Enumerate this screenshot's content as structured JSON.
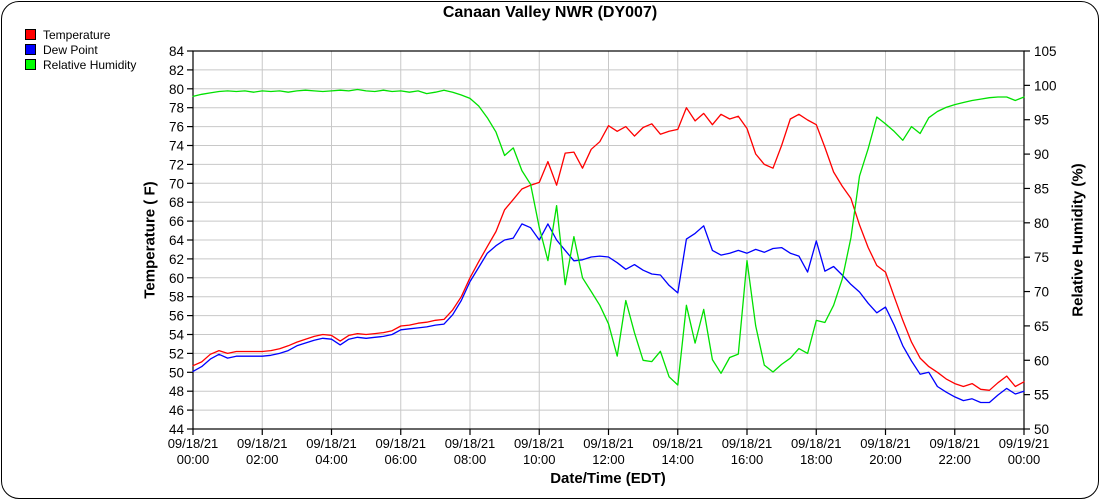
{
  "title": "Canaan Valley NWR (DY007)",
  "legend": {
    "items": [
      {
        "label": "Temperature",
        "color": "#ff0000"
      },
      {
        "label": "Dew Point",
        "color": "#0000ff"
      },
      {
        "label": "Relative Humidity",
        "color": "#00ff00"
      }
    ],
    "position": "top-left"
  },
  "chart_data": {
    "type": "line",
    "title": "Canaan Valley NWR (DY007)",
    "xlabel": "Date/Time (EDT)",
    "ylabel_left": "Temperature ( F)",
    "ylabel_right": "Relative Humidity (%)",
    "grid": "on",
    "legend_position": "top-left",
    "x_unit": "hours since 09/18/21 00:00",
    "x_range": [
      0,
      24
    ],
    "x_step_hours": 0.25,
    "x_tick_step_hours": 2,
    "x_ticks": [
      {
        "date": "09/18/21",
        "time": "00:00"
      },
      {
        "date": "09/18/21",
        "time": "02:00"
      },
      {
        "date": "09/18/21",
        "time": "04:00"
      },
      {
        "date": "09/18/21",
        "time": "06:00"
      },
      {
        "date": "09/18/21",
        "time": "08:00"
      },
      {
        "date": "09/18/21",
        "time": "10:00"
      },
      {
        "date": "09/18/21",
        "time": "12:00"
      },
      {
        "date": "09/18/21",
        "time": "14:00"
      },
      {
        "date": "09/18/21",
        "time": "16:00"
      },
      {
        "date": "09/18/21",
        "time": "18:00"
      },
      {
        "date": "09/18/21",
        "time": "20:00"
      },
      {
        "date": "09/18/21",
        "time": "22:00"
      },
      {
        "date": "09/19/21",
        "time": "00:00"
      }
    ],
    "y_left": {
      "label": "Temperature ( F)",
      "range": [
        44,
        84
      ],
      "tick_step": 2,
      "ticks": [
        44,
        46,
        48,
        50,
        52,
        54,
        56,
        58,
        60,
        62,
        64,
        66,
        68,
        70,
        72,
        74,
        76,
        78,
        80,
        82,
        84
      ]
    },
    "y_right": {
      "label": "Relative Humidity (%)",
      "range": [
        50,
        105
      ],
      "tick_step": 5,
      "ticks": [
        50,
        55,
        60,
        65,
        70,
        75,
        80,
        85,
        90,
        95,
        100,
        105
      ]
    },
    "grid_color": "#c8c8c8",
    "series": [
      {
        "name": "Temperature",
        "axis": "left",
        "color": "#ff0000",
        "values": [
          50.7,
          51.1,
          51.9,
          52.3,
          52.0,
          52.2,
          52.2,
          52.2,
          52.2,
          52.3,
          52.5,
          52.8,
          53.2,
          53.5,
          53.8,
          54.0,
          53.9,
          53.3,
          53.9,
          54.1,
          54.0,
          54.1,
          54.2,
          54.4,
          54.9,
          55.0,
          55.2,
          55.3,
          55.5,
          55.6,
          56.6,
          58.0,
          60.0,
          61.7,
          63.3,
          64.9,
          67.2,
          68.3,
          69.4,
          69.8,
          70.1,
          72.3,
          69.8,
          73.2,
          73.3,
          71.6,
          73.6,
          74.4,
          76.1,
          75.5,
          76.0,
          75.0,
          75.9,
          76.3,
          75.2,
          75.5,
          75.7,
          78.0,
          76.6,
          77.4,
          76.2,
          77.3,
          76.8,
          77.1,
          75.8,
          73.1,
          72.0,
          71.6,
          74.0,
          76.8,
          77.3,
          76.7,
          76.2,
          73.8,
          71.2,
          69.7,
          68.4,
          65.6,
          63.2,
          61.3,
          60.6,
          58.0,
          55.5,
          53.2,
          51.5,
          50.6,
          50.0,
          49.3,
          48.8,
          48.5,
          48.8,
          48.2,
          48.1,
          48.9,
          49.6,
          48.5,
          49.0
        ]
      },
      {
        "name": "Dew Point",
        "axis": "left",
        "color": "#0000ff",
        "values": [
          50.1,
          50.6,
          51.4,
          51.9,
          51.5,
          51.7,
          51.7,
          51.7,
          51.7,
          51.8,
          52.0,
          52.3,
          52.8,
          53.1,
          53.4,
          53.6,
          53.5,
          52.9,
          53.5,
          53.7,
          53.6,
          53.7,
          53.8,
          54.0,
          54.5,
          54.6,
          54.7,
          54.8,
          55.0,
          55.1,
          56.1,
          57.6,
          59.6,
          61.1,
          62.6,
          63.4,
          64.0,
          64.2,
          65.7,
          65.3,
          64.0,
          65.7,
          64.0,
          62.9,
          61.8,
          61.9,
          62.2,
          62.3,
          62.2,
          61.6,
          60.9,
          61.4,
          60.8,
          60.4,
          60.3,
          59.2,
          58.4,
          64.1,
          64.7,
          65.5,
          62.9,
          62.4,
          62.6,
          62.9,
          62.6,
          63.0,
          62.7,
          63.1,
          63.2,
          62.6,
          62.3,
          60.6,
          63.9,
          60.7,
          61.2,
          60.3,
          59.3,
          58.5,
          57.3,
          56.3,
          56.9,
          55.0,
          52.8,
          51.2,
          49.8,
          50.0,
          48.5,
          47.9,
          47.4,
          47.0,
          47.2,
          46.8,
          46.8,
          47.6,
          48.3,
          47.7,
          48.0
        ]
      },
      {
        "name": "Relative Humidity",
        "axis": "right",
        "color": "#00e100",
        "values": [
          98.4,
          98.7,
          98.9,
          99.1,
          99.2,
          99.1,
          99.2,
          99.0,
          99.2,
          99.1,
          99.2,
          99.0,
          99.2,
          99.3,
          99.2,
          99.1,
          99.2,
          99.3,
          99.2,
          99.4,
          99.2,
          99.1,
          99.3,
          99.1,
          99.2,
          99.0,
          99.2,
          98.8,
          99.0,
          99.3,
          99.0,
          98.6,
          98.1,
          97.0,
          95.3,
          93.2,
          89.8,
          90.9,
          87.6,
          85.6,
          79.3,
          74.5,
          82.5,
          71.0,
          78.0,
          72.0,
          70.0,
          68.0,
          65.3,
          60.6,
          68.7,
          64.0,
          60.0,
          59.8,
          61.3,
          57.6,
          56.4,
          68.0,
          62.5,
          67.4,
          60.1,
          58.1,
          60.4,
          60.9,
          74.5,
          65.0,
          59.3,
          58.3,
          59.4,
          60.3,
          61.7,
          61.0,
          65.8,
          65.5,
          68.0,
          71.8,
          77.8,
          86.8,
          90.8,
          95.4,
          94.4,
          93.3,
          92.0,
          94.0,
          93.0,
          95.3,
          96.2,
          96.8,
          97.2,
          97.5,
          97.8,
          98.0,
          98.2,
          98.3,
          98.3,
          97.8,
          98.3
        ]
      }
    ]
  }
}
